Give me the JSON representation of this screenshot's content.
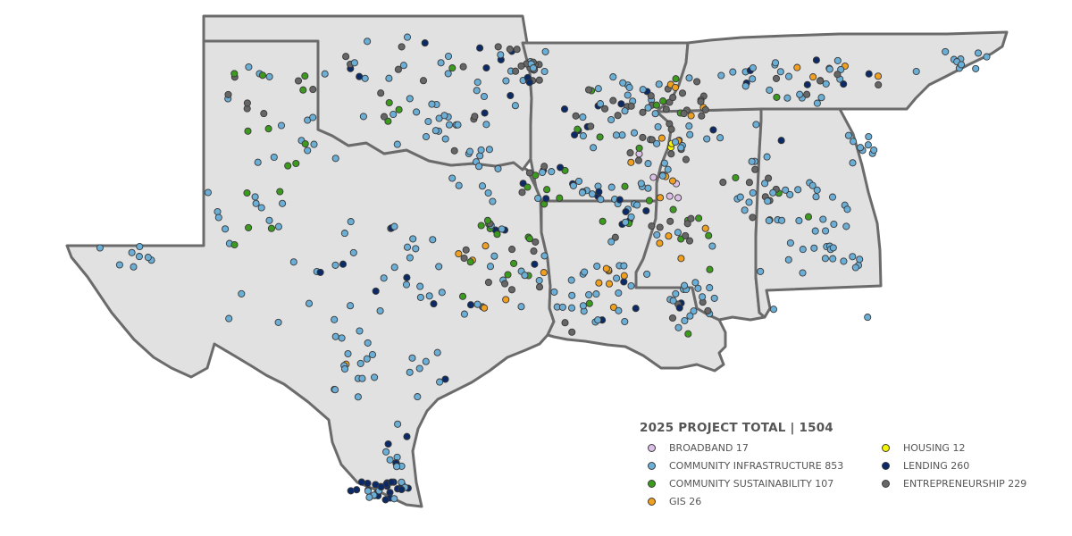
{
  "legend": {
    "title": "2025 PROJECT TOTAL  |  1504",
    "items": [
      {
        "label": "BROADBAND 17",
        "color": "#dcbfe6"
      },
      {
        "label": "HOUSING 12",
        "color": "#f5f500"
      },
      {
        "label": "COMMUNITY INFRASTRUCTURE 853",
        "color": "#6baed6"
      },
      {
        "label": "LENDING 260",
        "color": "#0b2a66"
      },
      {
        "label": "COMMUNITY SUSTAINABILITY 107",
        "color": "#3c9a1f"
      },
      {
        "label": "ENTREPRENEURSHIP 229",
        "color": "#666666"
      },
      {
        "label": "GIS 26",
        "color": "#f0a020"
      }
    ]
  },
  "map": {
    "states": [
      "Texas",
      "Oklahoma",
      "Arkansas",
      "Louisiana",
      "Mississippi",
      "Alabama",
      "Tennessee"
    ],
    "categories": [
      "broadband",
      "housing",
      "infrastructure",
      "lending",
      "sustainability",
      "entrepreneurship",
      "gis"
    ]
  }
}
